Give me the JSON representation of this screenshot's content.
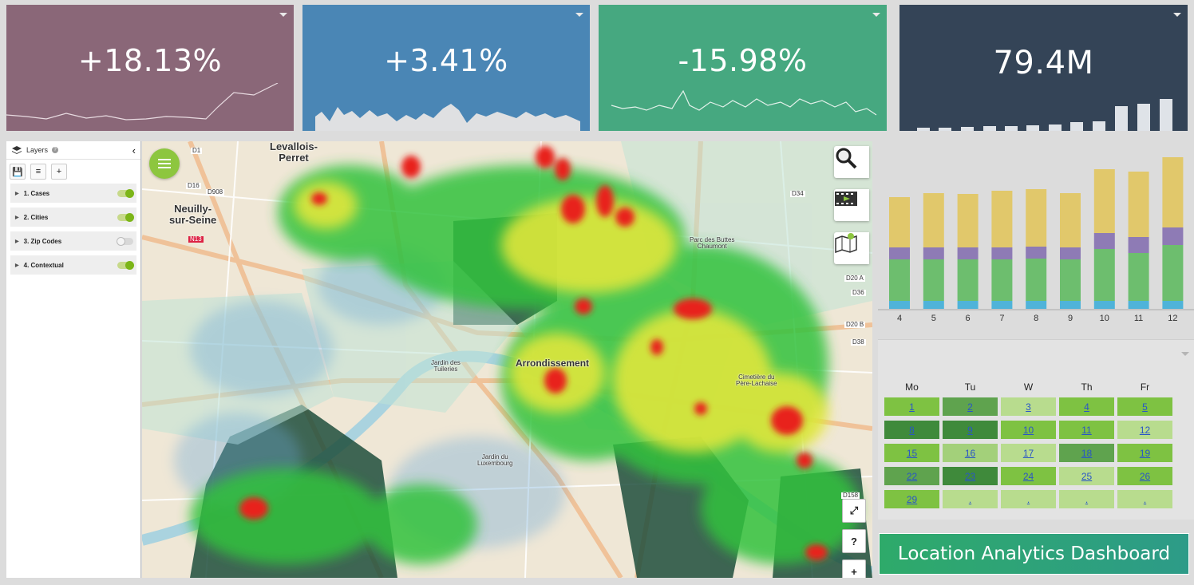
{
  "kpis": [
    {
      "value": "+18.13%",
      "color": "#8a6778",
      "spark_type": "line"
    },
    {
      "value": "+3.41%",
      "color": "#4a86b5",
      "spark_type": "area"
    },
    {
      "value": "-15.98%",
      "color": "#46a880",
      "spark_type": "line"
    },
    {
      "value": "79.4M",
      "color": "#344457",
      "spark_type": "bar"
    }
  ],
  "layers_panel": {
    "title": "Layers",
    "items": [
      {
        "label": "1. Cases",
        "enabled": true
      },
      {
        "label": "2. Cities",
        "enabled": true
      },
      {
        "label": "3. Zip Codes",
        "enabled": false
      },
      {
        "label": "4. Contextual",
        "enabled": true
      }
    ]
  },
  "map": {
    "labels": {
      "levallois": "Levallois-\nPerret",
      "neuilly": "Neuilly-\nsur-Seine",
      "road_d1": "D1",
      "road_d16": "D16",
      "road_d908": "D908",
      "road_n13": "N13",
      "road_d20a": "D20 A",
      "road_d20b": "D20 B",
      "road_d34": "D34",
      "road_d38": "D38",
      "road_d36": "D36",
      "road_d158": "D158",
      "arrondissement": "Arrondissement",
      "jardin_tuileries": "Jardin des\nTuileries",
      "buttes_chaumont": "Parc des Buttes\nChaumont",
      "pere_lachaise": "Cimetière du\nPère-Lachaise",
      "jardin_luxembourg": "Jardin du\nLuxembourg"
    },
    "tools": [
      "search-icon",
      "video-icon",
      "map-info-icon"
    ],
    "controls": {
      "expand": "⤢",
      "help": "?",
      "zoom_in": "+"
    }
  },
  "chart_data": {
    "type": "bar",
    "stacked": true,
    "categories": [
      "4",
      "5",
      "6",
      "7",
      "8",
      "9",
      "10",
      "11",
      "12"
    ],
    "series": [
      {
        "color": "#4fb3d9",
        "values": [
          10,
          10,
          10,
          10,
          10,
          10,
          10,
          10,
          10
        ]
      },
      {
        "color": "#6dbe6e",
        "values": [
          52,
          52,
          52,
          52,
          53,
          52,
          65,
          60,
          70
        ]
      },
      {
        "color": "#8e7bb5",
        "values": [
          15,
          15,
          15,
          15,
          15,
          15,
          20,
          20,
          22
        ]
      },
      {
        "color": "#e1c86b",
        "values": [
          63,
          68,
          67,
          71,
          72,
          68,
          80,
          82,
          88
        ]
      }
    ],
    "ylim": [
      0,
      200
    ]
  },
  "calendar": {
    "days": [
      "Mo",
      "Tu",
      "W",
      "Th",
      "Fr"
    ],
    "rows": [
      [
        {
          "d": "1",
          "c": "#7ec242"
        },
        {
          "d": "2",
          "c": "#5fa34e"
        },
        {
          "d": "3",
          "c": "#b8dc8e"
        },
        {
          "d": "4",
          "c": "#7ec242"
        },
        {
          "d": "5",
          "c": "#7ec242"
        }
      ],
      [
        {
          "d": "8",
          "c": "#3f8a3b"
        },
        {
          "d": "9",
          "c": "#3f8a3b"
        },
        {
          "d": "10",
          "c": "#7ec242"
        },
        {
          "d": "11",
          "c": "#7ec242"
        },
        {
          "d": "12",
          "c": "#b8dc8e"
        }
      ],
      [
        {
          "d": "15",
          "c": "#7ec242"
        },
        {
          "d": "16",
          "c": "#a3d07a"
        },
        {
          "d": "17",
          "c": "#b8dc8e"
        },
        {
          "d": "18",
          "c": "#5fa34e"
        },
        {
          "d": "19",
          "c": "#7ec242"
        }
      ],
      [
        {
          "d": "22",
          "c": "#5fa34e"
        },
        {
          "d": "23",
          "c": "#3f8a3b"
        },
        {
          "d": "24",
          "c": "#7ec242"
        },
        {
          "d": "25",
          "c": "#b8dc8e"
        },
        {
          "d": "26",
          "c": "#7ec242"
        }
      ],
      [
        {
          "d": "29",
          "c": "#7ec242"
        },
        {
          "d": ".",
          "c": "#b8dc8e"
        },
        {
          "d": ".",
          "c": "#b8dc8e"
        },
        {
          "d": ".",
          "c": "#b8dc8e"
        },
        {
          "d": ".",
          "c": "#b8dc8e"
        }
      ]
    ]
  },
  "banner": {
    "title": "Location Analytics Dashboard"
  }
}
